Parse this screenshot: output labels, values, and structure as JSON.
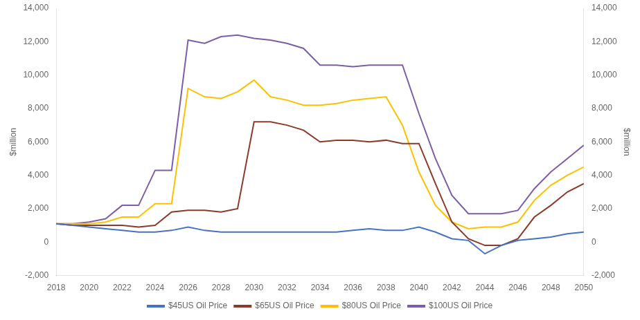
{
  "chart_data": {
    "type": "line",
    "ylabel": "$million",
    "y2label": "$million",
    "x": [
      2018,
      2019,
      2020,
      2021,
      2022,
      2023,
      2024,
      2025,
      2026,
      2027,
      2028,
      2029,
      2030,
      2031,
      2032,
      2033,
      2034,
      2035,
      2036,
      2037,
      2038,
      2039,
      2040,
      2041,
      2042,
      2043,
      2044,
      2045,
      2046,
      2047,
      2048,
      2049,
      2050
    ],
    "series": [
      {
        "name": "$45US Oil Price",
        "color": "#4472C4",
        "values": [
          1100,
          1000,
          900,
          800,
          700,
          600,
          600,
          700,
          900,
          700,
          600,
          600,
          600,
          600,
          600,
          600,
          600,
          600,
          700,
          800,
          700,
          700,
          900,
          600,
          200,
          100,
          -700,
          -200,
          100,
          200,
          300,
          500,
          600
        ]
      },
      {
        "name": "$65US Oil Price",
        "color": "#8B3A2A",
        "values": [
          1100,
          1000,
          1000,
          1000,
          1000,
          900,
          1000,
          1800,
          1900,
          1900,
          1800,
          2000,
          7200,
          7200,
          7000,
          6700,
          6000,
          6100,
          6100,
          6000,
          6100,
          5900,
          5900,
          3500,
          1200,
          200,
          -200,
          -200,
          200,
          1500,
          2200,
          3000,
          3500
        ]
      },
      {
        "name": "$80US Oil Price",
        "color": "#FFC000",
        "values": [
          1100,
          1100,
          1100,
          1200,
          1500,
          1500,
          2300,
          2300,
          9200,
          8700,
          8600,
          9000,
          9700,
          8700,
          8500,
          8200,
          8200,
          8300,
          8500,
          8600,
          8700,
          7000,
          4200,
          2200,
          1200,
          800,
          900,
          900,
          1200,
          2500,
          3400,
          4000,
          4500
        ]
      },
      {
        "name": "$100US Oil Price",
        "color": "#7B5EA7",
        "values": [
          1100,
          1100,
          1200,
          1400,
          2200,
          2200,
          4300,
          4300,
          12100,
          11900,
          12300,
          12400,
          12200,
          12100,
          11900,
          11600,
          10600,
          10600,
          10500,
          10600,
          10600,
          10600,
          7700,
          5000,
          2800,
          1700,
          1700,
          1700,
          1900,
          3200,
          4200,
          5000,
          5800
        ]
      }
    ],
    "xlim": [
      2018,
      2050
    ],
    "xticks": [
      2018,
      2020,
      2022,
      2024,
      2026,
      2028,
      2030,
      2032,
      2034,
      2036,
      2038,
      2040,
      2042,
      2044,
      2046,
      2048,
      2050
    ],
    "ylim": [
      -2000,
      14000
    ],
    "yticks": [
      {
        "value": -2000,
        "label": "-2,000"
      },
      0,
      {
        "value": 2000,
        "label": "2,000"
      },
      {
        "value": 4000,
        "label": "4,000"
      },
      {
        "value": 6000,
        "label": "6,000"
      },
      {
        "value": 8000,
        "label": "8,000"
      },
      {
        "value": 10000,
        "label": "10,000"
      },
      {
        "value": 12000,
        "label": "12,000"
      },
      {
        "value": 14000,
        "label": "14,000"
      }
    ],
    "y2lim": [
      -2000,
      14000
    ],
    "y2ticks": [
      {
        "value": -2000,
        "label": "-2,000"
      },
      0,
      {
        "value": 2000,
        "label": "2,000"
      },
      {
        "value": 4000,
        "label": "4,000"
      },
      {
        "value": 6000,
        "label": "6,000"
      },
      {
        "value": 8000,
        "label": "8,000"
      },
      {
        "value": 10000,
        "label": "10,000"
      },
      {
        "value": 12000,
        "label": "12,000"
      },
      {
        "value": 14000,
        "label": "14,000"
      }
    ],
    "grid": false,
    "legend": "bottom"
  }
}
